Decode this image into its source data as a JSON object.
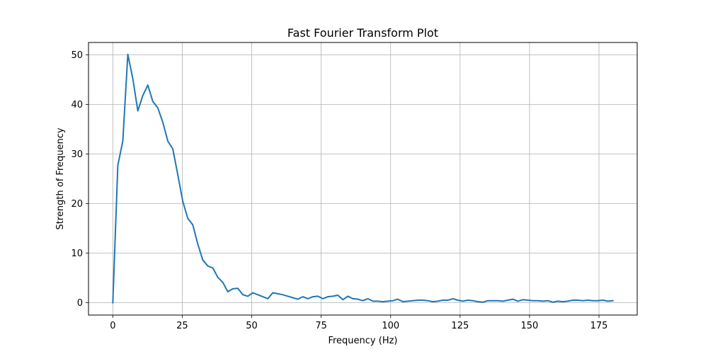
{
  "chart_data": {
    "type": "line",
    "title": "Fast Fourier Transform Plot",
    "xlabel": "Frequency (Hz)",
    "ylabel": "Strength of Frequency",
    "xlim": [
      -8.75,
      188.75
    ],
    "ylim": [
      -2.5,
      52.5
    ],
    "xticks": [
      0,
      25,
      50,
      75,
      100,
      125,
      150,
      175
    ],
    "yticks": [
      0,
      10,
      20,
      30,
      40,
      50
    ],
    "grid": true,
    "line_color": "#1f77b4",
    "grid_color": "#b0b0b0",
    "series": [
      {
        "x": [
          0,
          1.8,
          3.6,
          5.4,
          7.2,
          9.0,
          10.8,
          12.6,
          14.4,
          16.2,
          18.0,
          19.8,
          21.6,
          23.4,
          25.2,
          27.0,
          28.8,
          30.6,
          32.4,
          34.2,
          36.0,
          37.8,
          39.6,
          41.4,
          43.2,
          45.0,
          46.8,
          48.6,
          50.4,
          52.2,
          54.0,
          55.8,
          57.6,
          59.4,
          61.2,
          63.0,
          64.8,
          66.6,
          68.4,
          70.2,
          72.0,
          73.8,
          75.6,
          77.4,
          79.2,
          81.0,
          82.8,
          84.6,
          86.4,
          88.2,
          90.0,
          91.8,
          93.6,
          95.4,
          97.2,
          99.0,
          100.8,
          102.6,
          104.4,
          106.2,
          108.0,
          109.8,
          111.6,
          113.4,
          115.2,
          117.0,
          118.8,
          120.6,
          122.4,
          124.2,
          126.0,
          127.8,
          129.6,
          131.4,
          133.2,
          135.0,
          136.8,
          138.6,
          140.4,
          142.2,
          144.0,
          145.8,
          147.6,
          149.4,
          151.2,
          153.0,
          154.8,
          156.6,
          158.4,
          160.2,
          162.0,
          163.8,
          165.6,
          167.4,
          169.2,
          171.0,
          172.8,
          174.6,
          176.4,
          178.2,
          180.0
        ],
        "values": [
          0.0,
          27.7,
          32.6,
          50.1,
          45.2,
          38.7,
          41.8,
          43.9,
          40.6,
          39.3,
          36.4,
          32.6,
          31.0,
          25.8,
          20.4,
          17.0,
          15.7,
          11.8,
          8.6,
          7.4,
          7.0,
          5.1,
          4.1,
          2.2,
          2.8,
          2.9,
          1.6,
          1.3,
          2.0,
          1.6,
          1.2,
          0.8,
          2.0,
          1.8,
          1.6,
          1.3,
          1.0,
          0.7,
          1.2,
          0.8,
          1.2,
          1.3,
          0.8,
          1.2,
          1.3,
          1.5,
          0.6,
          1.3,
          0.8,
          0.7,
          0.4,
          0.8,
          0.3,
          0.3,
          0.2,
          0.3,
          0.4,
          0.7,
          0.2,
          0.3,
          0.4,
          0.5,
          0.5,
          0.4,
          0.2,
          0.3,
          0.5,
          0.5,
          0.8,
          0.5,
          0.3,
          0.5,
          0.4,
          0.2,
          0.1,
          0.4,
          0.4,
          0.4,
          0.3,
          0.5,
          0.7,
          0.3,
          0.6,
          0.5,
          0.4,
          0.4,
          0.3,
          0.4,
          0.1,
          0.3,
          0.2,
          0.3,
          0.5,
          0.5,
          0.4,
          0.5,
          0.4,
          0.4,
          0.5,
          0.3,
          0.4
        ]
      }
    ]
  }
}
